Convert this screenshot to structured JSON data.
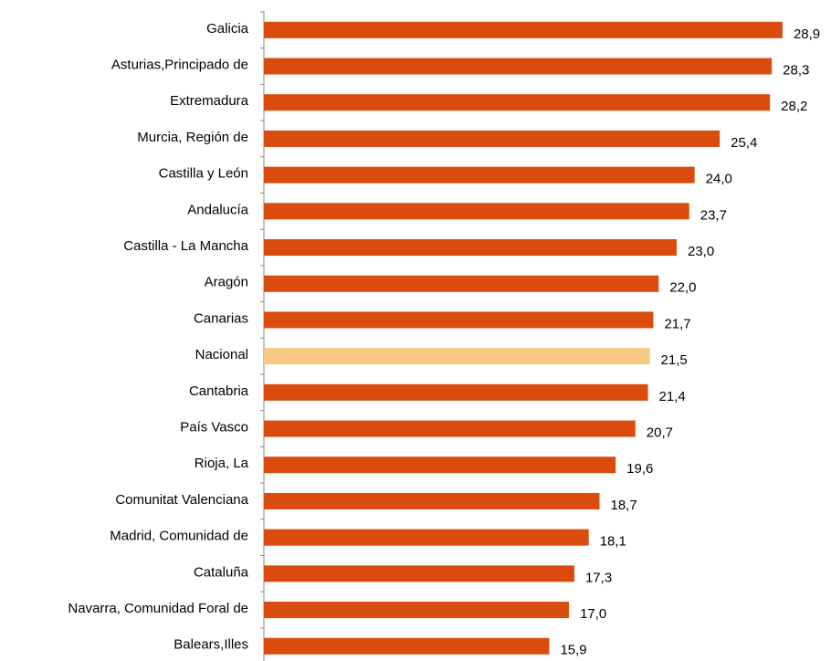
{
  "chart_data": {
    "type": "barh",
    "categories": [
      "Galicia",
      "Asturias,Principado de",
      "Extremadura",
      "Murcia, Región de",
      "Castilla y León",
      "Andalucía",
      "Castilla - La Mancha",
      "Aragón",
      "Canarias",
      "Nacional",
      "Cantabria",
      "País Vasco",
      "Rioja, La",
      "Comunitat Valenciana",
      "Madrid, Comunidad de",
      "Cataluña",
      "Navarra, Comunidad Foral de",
      "Balears,Illes"
    ],
    "values": [
      28.9,
      28.3,
      28.2,
      25.4,
      24.0,
      23.7,
      23.0,
      22.0,
      21.7,
      21.5,
      21.4,
      20.7,
      19.6,
      18.7,
      18.1,
      17.3,
      17.0,
      15.9
    ],
    "value_labels": [
      "28,9",
      "28,3",
      "28,2",
      "25,4",
      "24,0",
      "23,7",
      "23,0",
      "22,0",
      "21,7",
      "21,5",
      "21,4",
      "20,7",
      "19,6",
      "18,7",
      "18,1",
      "17,3",
      "17,0",
      "15,9"
    ],
    "colors": [
      "#d94c0d",
      "#d94c0d",
      "#d94c0d",
      "#d94c0d",
      "#d94c0d",
      "#d94c0d",
      "#d94c0d",
      "#d94c0d",
      "#d94c0d",
      "#f5c884",
      "#d94c0d",
      "#d94c0d",
      "#d94c0d",
      "#d94c0d",
      "#d94c0d",
      "#d94c0d",
      "#d94c0d",
      "#d94c0d"
    ],
    "xlim": [
      0,
      31.6
    ]
  }
}
